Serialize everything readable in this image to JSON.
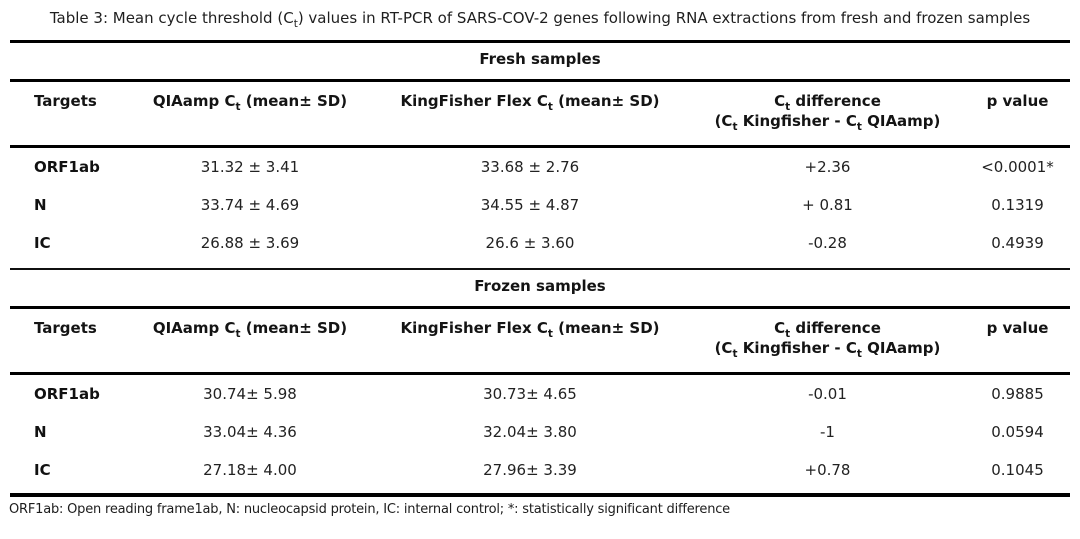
{
  "title_segments": [
    {
      "text": "Table 3: Mean cycle threshold (C"
    },
    {
      "text": "t",
      "sub": true
    },
    {
      "text": ") values in RT-PCR of SARS-COV-2 genes following RNA extractions from fresh and frozen samples"
    }
  ],
  "columns": [
    {
      "id": "targets",
      "label_segments": [
        {
          "text": "Targets"
        }
      ]
    },
    {
      "id": "qiaamp_ct",
      "label_segments": [
        {
          "text": "QIAamp C"
        },
        {
          "text": "t",
          "sub": true
        },
        {
          "text": " (mean± SD)"
        }
      ]
    },
    {
      "id": "kingfisher_ct",
      "label_segments": [
        {
          "text": "KingFisher Flex C"
        },
        {
          "text": "t",
          "sub": true
        },
        {
          "text": " (mean± SD)"
        }
      ]
    },
    {
      "id": "ct_difference",
      "label_segments": [
        {
          "text": "C"
        },
        {
          "text": "t",
          "sub": true
        },
        {
          "text": " difference"
        },
        {
          "br": true
        },
        {
          "text": "(C"
        },
        {
          "text": "t",
          "sub": true
        },
        {
          "text": " Kingfisher - C"
        },
        {
          "text": "t",
          "sub": true
        },
        {
          "text": " QIAamp)"
        }
      ]
    },
    {
      "id": "p_value",
      "label_segments": [
        {
          "text": "p value"
        }
      ]
    }
  ],
  "sections": [
    {
      "header": "Fresh samples",
      "rows": [
        {
          "target": "ORF1ab",
          "qiaamp": "31.32 ± 3.41",
          "kingfisher": "33.68 ± 2.76",
          "difference": "+2.36",
          "p": "<0.0001*"
        },
        {
          "target": "N",
          "qiaamp": "33.74 ± 4.69",
          "kingfisher": "34.55 ± 4.87",
          "difference": "+ 0.81",
          "p": "0.1319"
        },
        {
          "target": "IC",
          "qiaamp": "26.88 ± 3.69",
          "kingfisher": "26.6 ± 3.60",
          "difference": "-0.28",
          "p": "0.4939"
        }
      ]
    },
    {
      "header": "Frozen samples",
      "rows": [
        {
          "target": "ORF1ab",
          "qiaamp": "30.74± 5.98",
          "kingfisher": "30.73± 4.65",
          "difference": "-0.01",
          "p": "0.9885"
        },
        {
          "target": "N",
          "qiaamp": "33.04± 4.36",
          "kingfisher": "32.04± 3.80",
          "difference": "-1",
          "p": "0.0594"
        },
        {
          "target": "IC",
          "qiaamp": "27.18± 4.00",
          "kingfisher": "27.96± 3.39",
          "difference": "+0.78",
          "p": "0.1045"
        }
      ]
    }
  ],
  "footnote": "ORF1ab: Open reading frame1ab, N: nucleocapsid protein, IC: internal control; *: statistically significant difference"
}
